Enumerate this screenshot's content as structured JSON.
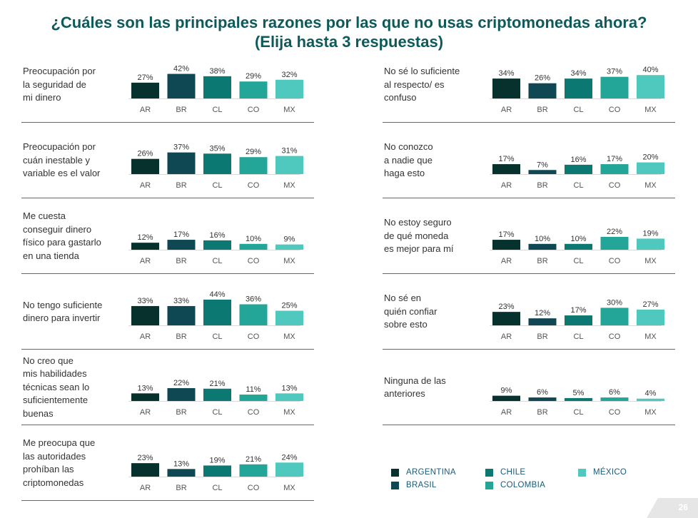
{
  "title_line1": "¿Cuáles son las principales razones por las que no usas criptomonedas ahora?",
  "title_line2": "(Elija hasta 3 respuestas)",
  "page_number": "26",
  "colors": {
    "AR": "#06312c",
    "BR": "#0f4752",
    "CL": "#0b7872",
    "CO": "#23a598",
    "MX": "#4fc9bd"
  },
  "chart_data": {
    "type": "bar",
    "categories": [
      "AR",
      "BR",
      "CL",
      "CO",
      "MX"
    ],
    "legend": [
      {
        "code": "AR",
        "name": "ARGENTINA"
      },
      {
        "code": "BR",
        "name": "BRASIL"
      },
      {
        "code": "CL",
        "name": "CHILE"
      },
      {
        "code": "CO",
        "name": "COLOMBIA"
      },
      {
        "code": "MX",
        "name": "MÉXICO"
      }
    ],
    "legend_position": "bottom-right",
    "panels": [
      {
        "label": "Preocupación por\nla seguridad de\nmi dinero",
        "values": [
          27,
          42,
          38,
          29,
          32
        ]
      },
      {
        "label": "Preocupación por\ncuán inestable y\nvariable es el valor",
        "values": [
          26,
          37,
          35,
          29,
          31
        ]
      },
      {
        "label": "Me cuesta\nconseguir dinero\nfísico para gastarlo\nen una tienda",
        "values": [
          12,
          17,
          16,
          10,
          9
        ]
      },
      {
        "label": "No tengo suficiente\ndinero para invertir",
        "values": [
          33,
          33,
          44,
          36,
          25
        ]
      },
      {
        "label": "No creo que\nmis habilidades\ntécnicas sean lo\nsuficientemente\nbuenas",
        "values": [
          13,
          22,
          21,
          11,
          13
        ]
      },
      {
        "label": "Me preocupa que\nlas autoridades\nprohíban las\ncriptomonedas",
        "values": [
          23,
          13,
          19,
          21,
          24
        ]
      },
      {
        "label": "No sé lo suficiente\nal respecto/ es\nconfuso",
        "values": [
          34,
          26,
          34,
          37,
          40
        ]
      },
      {
        "label": "No conozco\na nadie que\nhaga esto",
        "values": [
          17,
          7,
          16,
          17,
          20
        ]
      },
      {
        "label": "No estoy seguro\nde qué moneda\nes mejor para mí",
        "values": [
          17,
          10,
          10,
          22,
          19
        ]
      },
      {
        "label": "No sé en\nquién confiar\nsobre esto",
        "values": [
          23,
          12,
          17,
          30,
          27
        ]
      },
      {
        "label": "Ninguna de las\nanteriores",
        "values": [
          9,
          6,
          5,
          6,
          4
        ]
      }
    ]
  }
}
